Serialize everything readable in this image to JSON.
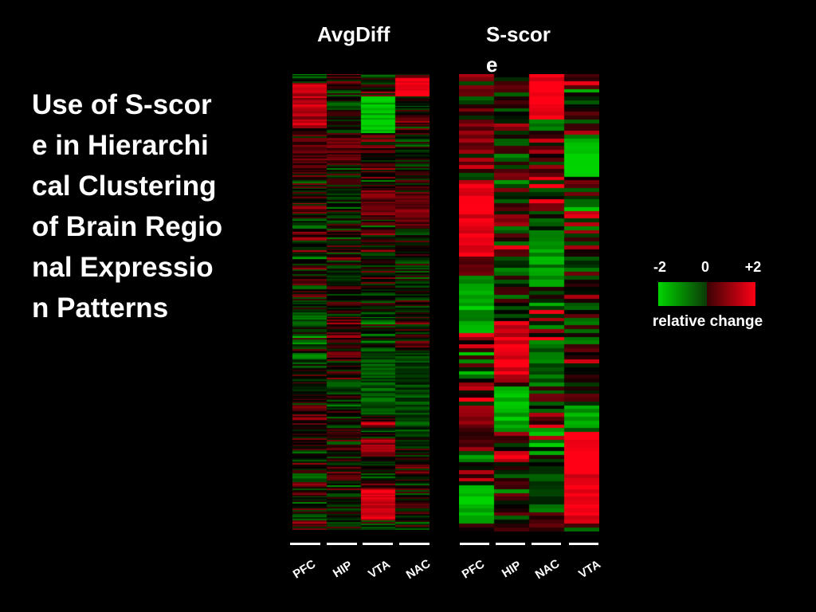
{
  "slide_title": "Use of S-score in Hierarchical Clustering of Brain Regional Expression Patterns",
  "colors": {
    "high": "#ff0015",
    "low": "#00d400",
    "mid": "#000000",
    "background": "#000000"
  },
  "chart_data": [
    {
      "type": "heatmap",
      "title": "AvgDiff",
      "columns": [
        "PFC",
        "HIP",
        "VTA",
        "NAC"
      ],
      "value_range": [
        -2,
        2
      ],
      "rows": 300,
      "dominant_blocks": [
        {
          "column": "PFC",
          "row_range": [
            0.02,
            0.12
          ],
          "value": 1.4
        },
        {
          "column": "NAC",
          "row_range": [
            0.01,
            0.05
          ],
          "value": 1.8
        },
        {
          "column": "VTA",
          "row_range": [
            0.05,
            0.13
          ],
          "value": -1.8
        },
        {
          "column": "PFC",
          "row_range": [
            0.14,
            0.22
          ],
          "value": 0.6
        },
        {
          "column": "HIP",
          "row_range": [
            0.14,
            0.2
          ],
          "value": 0.6
        },
        {
          "column": "VTA",
          "row_range": [
            0.25,
            0.32
          ],
          "value": 0.8
        },
        {
          "column": "NAC",
          "row_range": [
            0.26,
            0.34
          ],
          "value": 0.8
        },
        {
          "column": "VTA",
          "row_range": [
            0.6,
            0.75
          ],
          "value": -0.8
        },
        {
          "column": "NAC",
          "row_range": [
            0.62,
            0.8
          ],
          "value": -0.6
        },
        {
          "column": "VTA",
          "row_range": [
            0.8,
            0.84
          ],
          "value": 1.2
        },
        {
          "column": "VTA",
          "row_range": [
            0.91,
            0.98
          ],
          "value": 1.8
        }
      ]
    },
    {
      "type": "heatmap",
      "title": "S-score",
      "columns": [
        "PFC",
        "HIP",
        "NAC",
        "VTA"
      ],
      "value_range": [
        -2,
        2
      ],
      "rows": 120,
      "dominant_blocks": [
        {
          "column": "NAC",
          "row_range": [
            0.0,
            0.1
          ],
          "value": 2.0
        },
        {
          "column": "PFC",
          "row_range": [
            0.1,
            0.17
          ],
          "value": 1.0
        },
        {
          "column": "VTA",
          "row_range": [
            0.14,
            0.22
          ],
          "value": -2.0
        },
        {
          "column": "PFC",
          "row_range": [
            0.24,
            0.4
          ],
          "value": 2.0
        },
        {
          "column": "NAC",
          "row_range": [
            0.34,
            0.46
          ],
          "value": -1.4
        },
        {
          "column": "PFC",
          "row_range": [
            0.44,
            0.56
          ],
          "value": -1.6
        },
        {
          "column": "HIP",
          "row_range": [
            0.54,
            0.66
          ],
          "value": 1.8
        },
        {
          "column": "NAC",
          "row_range": [
            0.58,
            0.68
          ],
          "value": -1.0
        },
        {
          "column": "HIP",
          "row_range": [
            0.68,
            0.78
          ],
          "value": -1.8
        },
        {
          "column": "PFC",
          "row_range": [
            0.72,
            0.82
          ],
          "value": 0.8
        },
        {
          "column": "VTA",
          "row_range": [
            0.78,
            0.98
          ],
          "value": 2.0
        },
        {
          "column": "PFC",
          "row_range": [
            0.9,
            0.98
          ],
          "value": -1.6
        },
        {
          "column": "NAC",
          "row_range": [
            0.86,
            0.94
          ],
          "value": -0.6
        }
      ]
    }
  ],
  "heatmap_titles": [
    "AvgDiff",
    "S-score"
  ],
  "legend": {
    "min_label": "-2",
    "mid_label": "0",
    "max_label": "+2",
    "caption": "relative change"
  }
}
